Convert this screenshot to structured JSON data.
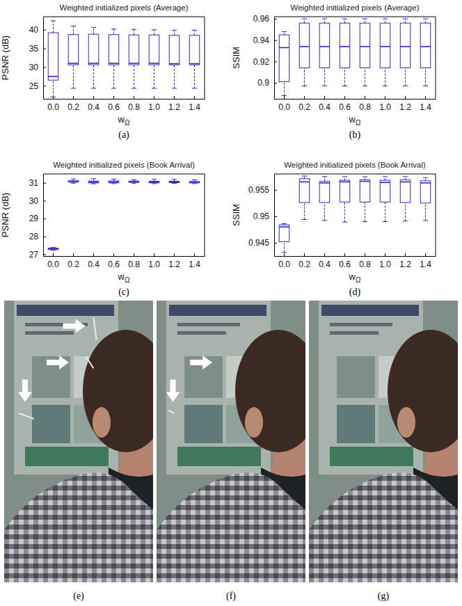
{
  "chart_data": [
    {
      "type": "box",
      "title": "Weighted initialized pixels (Average)",
      "x_label": "wΩ",
      "y_label": "PSNR (dB)",
      "caption": "(a)",
      "color": "#2a2ad0",
      "categories": [
        "0.0",
        "0.2",
        "0.4",
        "0.6",
        "0.8",
        "1.0",
        "1.2",
        "1.4"
      ],
      "ylim": [
        21.5,
        43.5
      ],
      "yticks": [
        25,
        30,
        35,
        40
      ],
      "boxes": [
        {
          "min": 22.0,
          "q1": 26.5,
          "median": 27.5,
          "q3": 39.2,
          "max": 42.4
        },
        {
          "min": 24.3,
          "q1": 30.6,
          "median": 31.0,
          "q3": 38.7,
          "max": 41.0
        },
        {
          "min": 24.3,
          "q1": 30.6,
          "median": 31.0,
          "q3": 38.8,
          "max": 40.6
        },
        {
          "min": 24.3,
          "q1": 30.6,
          "median": 31.0,
          "q3": 38.7,
          "max": 40.2
        },
        {
          "min": 24.3,
          "q1": 30.6,
          "median": 31.0,
          "q3": 38.6,
          "max": 40.1
        },
        {
          "min": 24.3,
          "q1": 30.6,
          "median": 31.0,
          "q3": 38.6,
          "max": 40.0
        },
        {
          "min": 24.3,
          "q1": 30.6,
          "median": 30.9,
          "q3": 38.5,
          "max": 39.9
        },
        {
          "min": 24.3,
          "q1": 30.6,
          "median": 30.9,
          "q3": 38.5,
          "max": 39.9
        }
      ]
    },
    {
      "type": "box",
      "title": "Weighted initialized pixels (Average)",
      "x_label": "wΩ",
      "y_label": "SSIM",
      "caption": "(b)",
      "color": "#2a2ad0",
      "categories": [
        "0.0",
        "0.2",
        "0.4",
        "0.6",
        "0.8",
        "1.0",
        "1.2",
        "1.4"
      ],
      "ylim": [
        0.885,
        0.962
      ],
      "yticks": [
        0.9,
        0.92,
        0.94,
        0.96
      ],
      "boxes": [
        {
          "min": 0.888,
          "q1": 0.901,
          "median": 0.933,
          "q3": 0.945,
          "max": 0.948
        },
        {
          "min": 0.897,
          "q1": 0.914,
          "median": 0.934,
          "q3": 0.956,
          "max": 0.96
        },
        {
          "min": 0.897,
          "q1": 0.914,
          "median": 0.934,
          "q3": 0.956,
          "max": 0.96
        },
        {
          "min": 0.897,
          "q1": 0.914,
          "median": 0.934,
          "q3": 0.956,
          "max": 0.96
        },
        {
          "min": 0.897,
          "q1": 0.914,
          "median": 0.934,
          "q3": 0.956,
          "max": 0.96
        },
        {
          "min": 0.897,
          "q1": 0.914,
          "median": 0.934,
          "q3": 0.956,
          "max": 0.96
        },
        {
          "min": 0.897,
          "q1": 0.914,
          "median": 0.934,
          "q3": 0.956,
          "max": 0.96
        },
        {
          "min": 0.897,
          "q1": 0.914,
          "median": 0.934,
          "q3": 0.956,
          "max": 0.96
        }
      ]
    },
    {
      "type": "box",
      "title": "Weighted initialized pixels (Book Arrival)",
      "x_label": "wΩ",
      "y_label": "PSNR (dB)",
      "caption": "(c)",
      "color": "#2a2ad0",
      "categories": [
        "0.0",
        "0.2",
        "0.4",
        "0.6",
        "0.8",
        "1.0",
        "1.2",
        "1.4"
      ],
      "ylim": [
        26.9,
        31.5
      ],
      "yticks": [
        27,
        28,
        29,
        30,
        31
      ],
      "boxes": [
        {
          "min": 27.22,
          "q1": 27.26,
          "median": 27.3,
          "q3": 27.34,
          "max": 27.38
        },
        {
          "min": 30.98,
          "q1": 31.04,
          "median": 31.07,
          "q3": 31.12,
          "max": 31.22
        },
        {
          "min": 30.95,
          "q1": 31.0,
          "median": 31.04,
          "q3": 31.1,
          "max": 31.24
        },
        {
          "min": 30.96,
          "q1": 31.0,
          "median": 31.05,
          "q3": 31.11,
          "max": 31.22
        },
        {
          "min": 30.98,
          "q1": 31.03,
          "median": 31.06,
          "q3": 31.1,
          "max": 31.18
        },
        {
          "min": 30.96,
          "q1": 31.0,
          "median": 31.04,
          "q3": 31.09,
          "max": 31.2
        },
        {
          "min": 30.97,
          "q1": 31.01,
          "median": 31.05,
          "q3": 31.09,
          "max": 31.2
        },
        {
          "min": 30.96,
          "q1": 31.0,
          "median": 31.03,
          "q3": 31.08,
          "max": 31.17
        }
      ]
    },
    {
      "type": "box",
      "title": "Weighted initialized pixels (Book Arrival)",
      "x_label": "wΩ",
      "y_label": "SSIM",
      "caption": "(d)",
      "color": "#2a2ad0",
      "categories": [
        "0.0",
        "0.2",
        "0.4",
        "0.6",
        "0.8",
        "1.0",
        "1.2",
        "1.4"
      ],
      "ylim": [
        0.9425,
        0.958
      ],
      "yticks": [
        0.945,
        0.95,
        0.955
      ],
      "boxes": [
        {
          "min": 0.9432,
          "q1": 0.9452,
          "median": 0.948,
          "q3": 0.9484,
          "max": 0.9486
        },
        {
          "min": 0.9494,
          "q1": 0.9526,
          "median": 0.9565,
          "q3": 0.9571,
          "max": 0.9576
        },
        {
          "min": 0.9492,
          "q1": 0.9526,
          "median": 0.9563,
          "q3": 0.9566,
          "max": 0.9575
        },
        {
          "min": 0.9489,
          "q1": 0.9527,
          "median": 0.9565,
          "q3": 0.9568,
          "max": 0.9575
        },
        {
          "min": 0.949,
          "q1": 0.9527,
          "median": 0.9566,
          "q3": 0.9569,
          "max": 0.9575
        },
        {
          "min": 0.949,
          "q1": 0.9527,
          "median": 0.9564,
          "q3": 0.9568,
          "max": 0.9575
        },
        {
          "min": 0.9491,
          "q1": 0.9526,
          "median": 0.9565,
          "q3": 0.9569,
          "max": 0.9575
        },
        {
          "min": 0.9492,
          "q1": 0.9525,
          "median": 0.9563,
          "q3": 0.9567,
          "max": 0.9573
        }
      ]
    }
  ],
  "images": [
    {
      "caption": "(e)"
    },
    {
      "caption": "(f)"
    },
    {
      "caption": "(g)"
    }
  ]
}
